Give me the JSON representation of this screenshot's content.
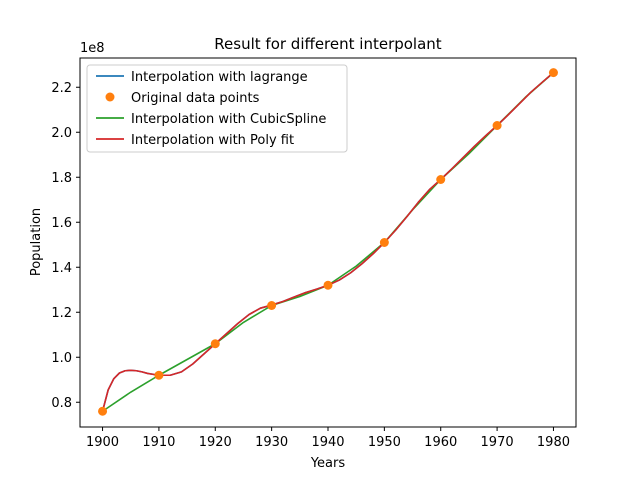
{
  "chart_data": {
    "type": "line",
    "title": "Result for different interpolant",
    "xlabel": "Years",
    "ylabel": "Population",
    "offset_label": "1e8",
    "xlim": [
      1896,
      1984
    ],
    "ylim": [
      0.69,
      2.33
    ],
    "x_ticks": [
      1900,
      1910,
      1920,
      1930,
      1940,
      1950,
      1960,
      1970,
      1980
    ],
    "x_tick_labels": [
      "1900",
      "1910",
      "1920",
      "1930",
      "1940",
      "1950",
      "1960",
      "1970",
      "1980"
    ],
    "y_ticks": [
      0.8,
      1.0,
      1.2,
      1.4,
      1.6,
      1.8,
      2.0,
      2.2
    ],
    "y_tick_labels": [
      "0.8",
      "1.0",
      "1.2",
      "1.4",
      "1.6",
      "1.8",
      "2.0",
      "2.2"
    ],
    "legend_position": "upper-left",
    "points": {
      "x": [
        1900,
        1910,
        1920,
        1930,
        1940,
        1950,
        1960,
        1970,
        1980
      ],
      "y": [
        0.76,
        0.92,
        1.06,
        1.23,
        1.32,
        1.51,
        1.79,
        2.03,
        2.265
      ]
    },
    "series": [
      {
        "name": "Interpolation with lagrange",
        "color": "#1f77b4",
        "style": "line",
        "x": [
          1900,
          1901,
          1902,
          1903,
          1904,
          1905,
          1906,
          1907,
          1908,
          1910,
          1912,
          1914,
          1916,
          1918,
          1920,
          1922,
          1924,
          1926,
          1928,
          1930,
          1932,
          1934,
          1936,
          1938,
          1940,
          1942,
          1944,
          1946,
          1948,
          1950,
          1952,
          1954,
          1956,
          1958,
          1960,
          1962,
          1964,
          1966,
          1968,
          1970,
          1972,
          1974,
          1976,
          1978,
          1980
        ],
        "y": [
          0.76,
          0.855,
          0.905,
          0.93,
          0.94,
          0.942,
          0.94,
          0.935,
          0.928,
          0.92,
          0.92,
          0.935,
          0.97,
          1.015,
          1.06,
          1.105,
          1.15,
          1.19,
          1.218,
          1.232,
          1.248,
          1.268,
          1.287,
          1.303,
          1.32,
          1.343,
          1.375,
          1.415,
          1.46,
          1.51,
          1.565,
          1.625,
          1.688,
          1.745,
          1.79,
          1.838,
          1.888,
          1.938,
          1.985,
          2.03,
          2.078,
          2.128,
          2.178,
          2.222,
          2.265
        ]
      },
      {
        "name": "Original data points",
        "color": "#ff7f0e",
        "style": "marker"
      },
      {
        "name": "Interpolation with CubicSpline",
        "color": "#2ca02c",
        "style": "line",
        "x": [
          1900,
          1905,
          1910,
          1915,
          1920,
          1925,
          1930,
          1935,
          1940,
          1945,
          1950,
          1955,
          1960,
          1965,
          1970,
          1975,
          1980
        ],
        "y": [
          0.76,
          0.845,
          0.92,
          0.99,
          1.06,
          1.155,
          1.23,
          1.27,
          1.32,
          1.405,
          1.51,
          1.655,
          1.79,
          1.905,
          2.03,
          2.155,
          2.265
        ]
      },
      {
        "name": "Interpolation with Poly fit",
        "color": "#d62728",
        "style": "line",
        "x": [
          1900,
          1901,
          1902,
          1903,
          1904,
          1905,
          1906,
          1907,
          1908,
          1910,
          1912,
          1914,
          1916,
          1918,
          1920,
          1922,
          1924,
          1926,
          1928,
          1930,
          1932,
          1934,
          1936,
          1938,
          1940,
          1942,
          1944,
          1946,
          1948,
          1950,
          1952,
          1954,
          1956,
          1958,
          1960,
          1962,
          1964,
          1966,
          1968,
          1970,
          1972,
          1974,
          1976,
          1978,
          1980
        ],
        "y": [
          0.76,
          0.855,
          0.905,
          0.93,
          0.94,
          0.942,
          0.94,
          0.935,
          0.928,
          0.92,
          0.92,
          0.935,
          0.97,
          1.015,
          1.06,
          1.105,
          1.15,
          1.19,
          1.218,
          1.232,
          1.248,
          1.268,
          1.287,
          1.303,
          1.32,
          1.343,
          1.375,
          1.415,
          1.46,
          1.51,
          1.565,
          1.625,
          1.688,
          1.745,
          1.79,
          1.838,
          1.888,
          1.938,
          1.985,
          2.03,
          2.078,
          2.128,
          2.178,
          2.222,
          2.265
        ]
      }
    ]
  }
}
